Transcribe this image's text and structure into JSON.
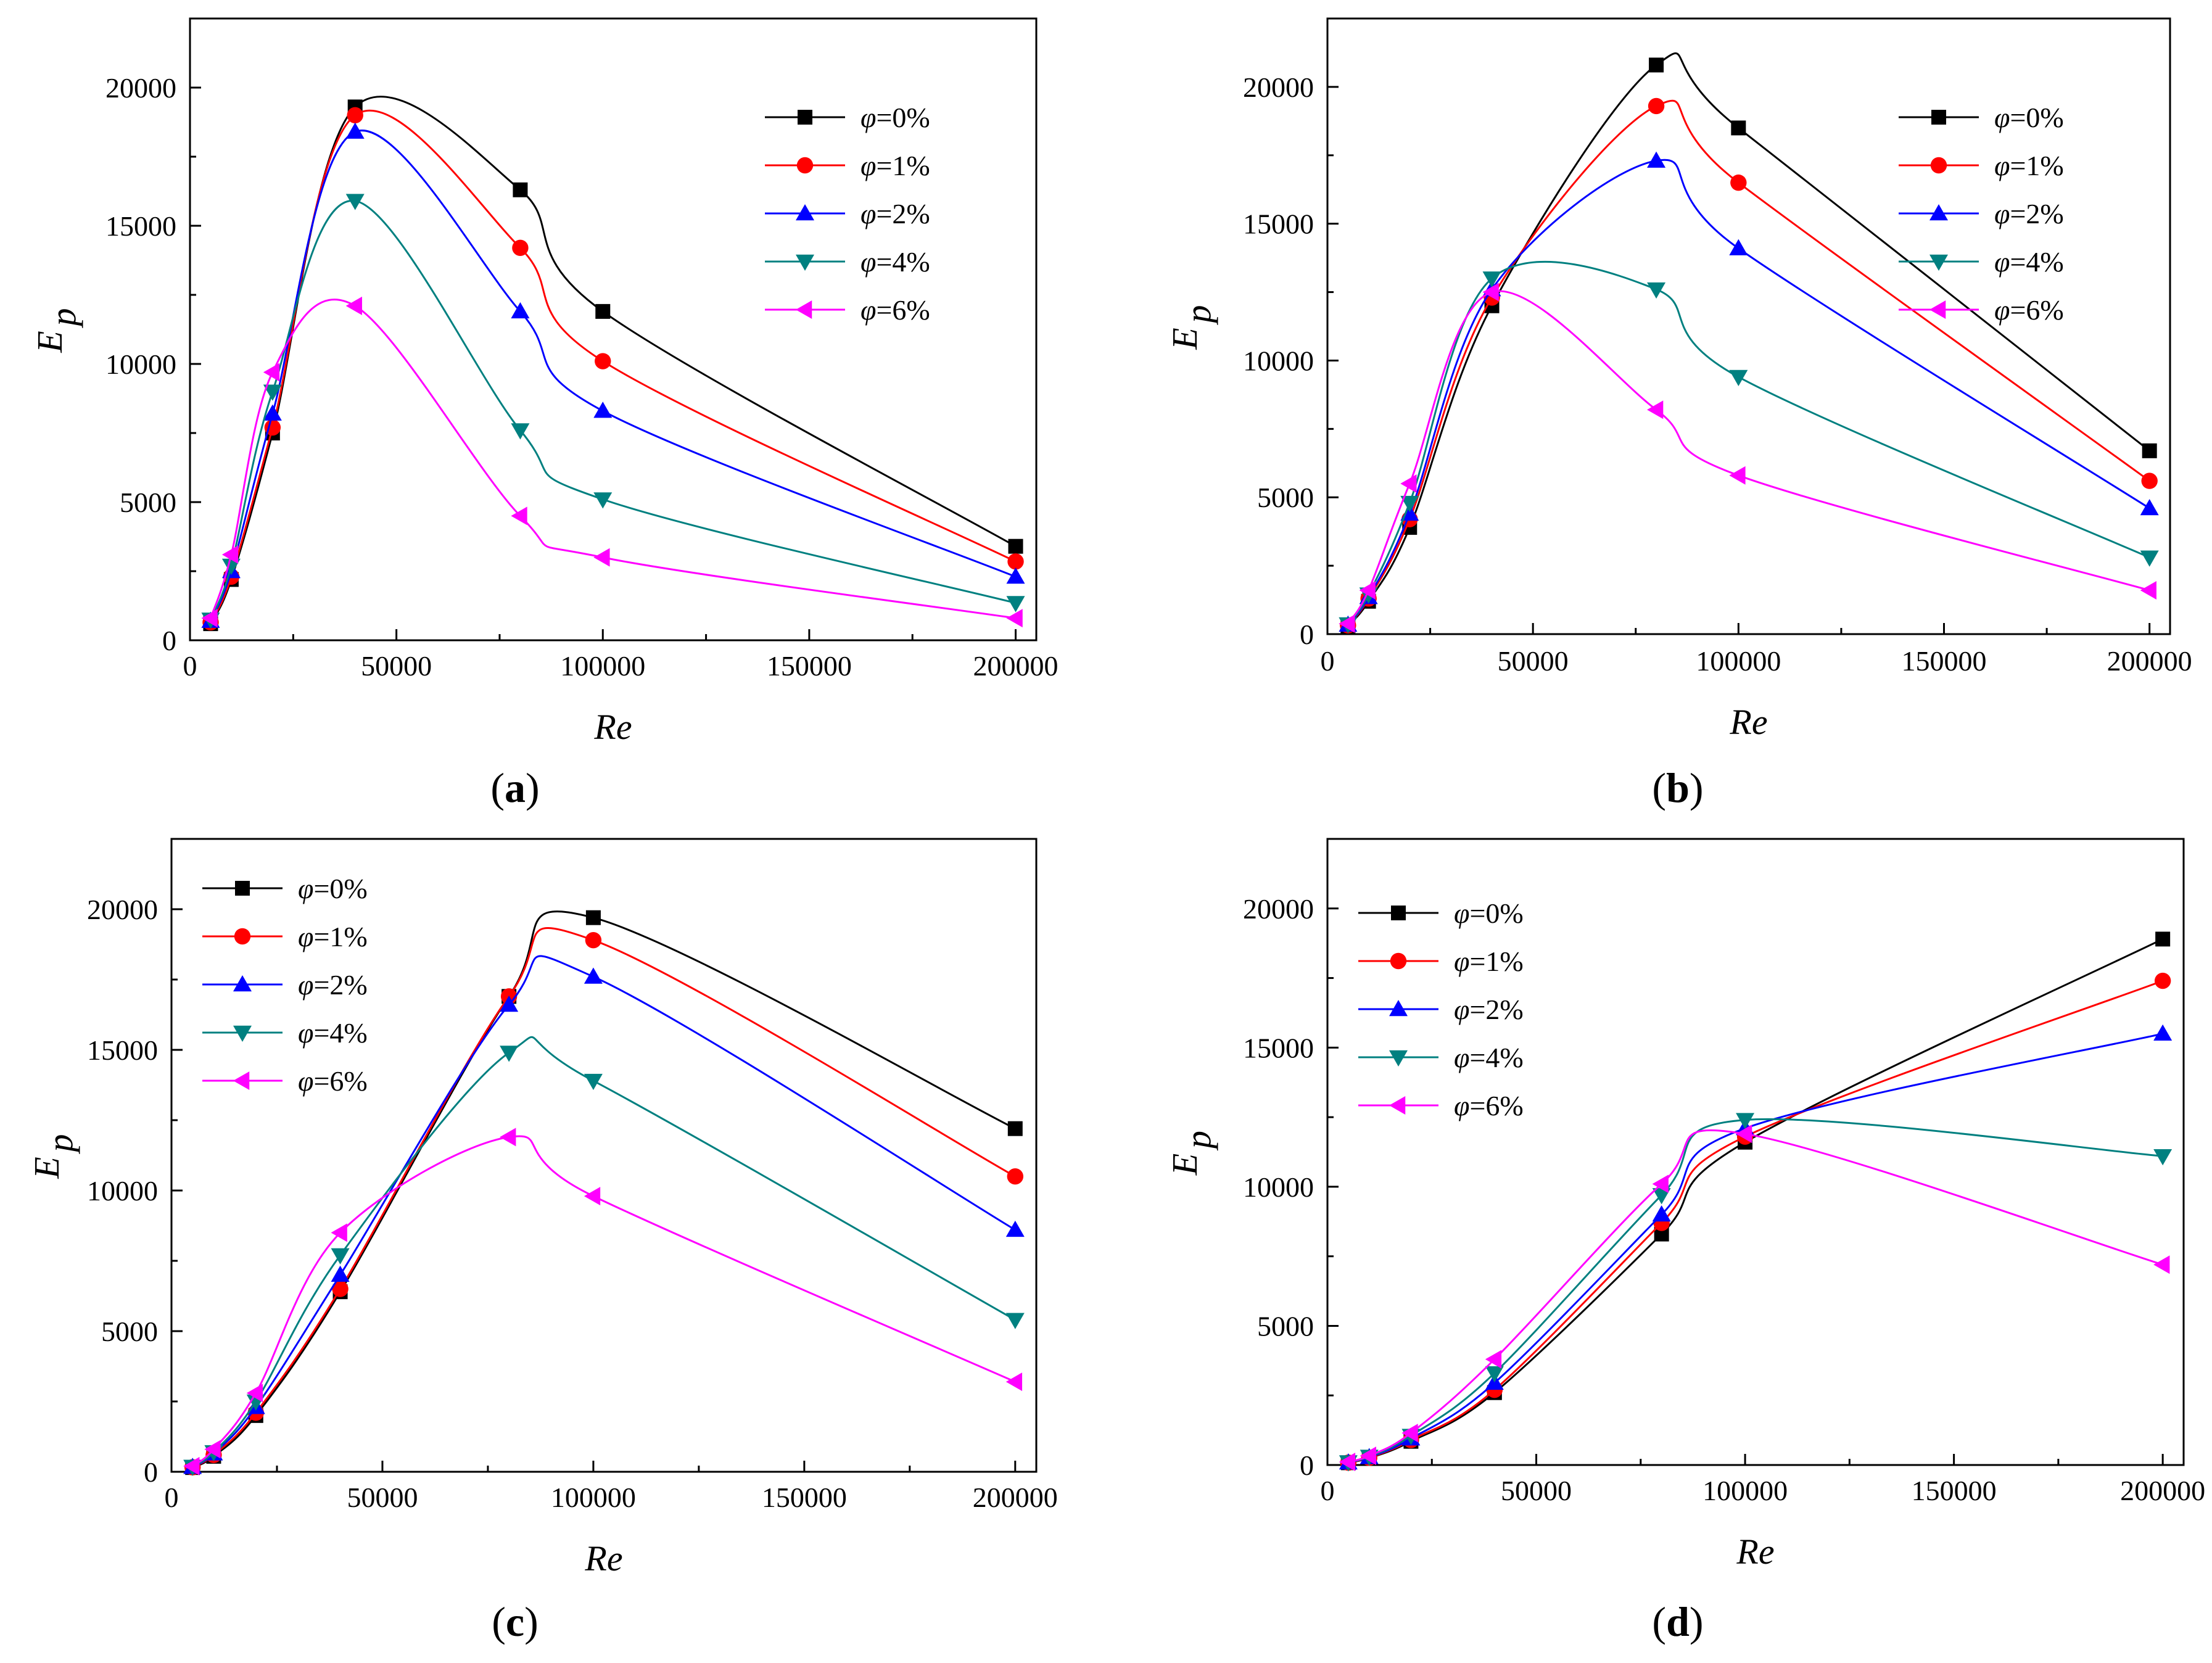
{
  "chart_data": [
    {
      "type": "line",
      "caption": "a",
      "xlabel": "Re",
      "ylabel": "E",
      "ylabel_sub": "p",
      "xlim": [
        0,
        205000
      ],
      "ylim": [
        0,
        22500
      ],
      "x_ticks": [
        0,
        50000,
        100000,
        150000,
        200000
      ],
      "x_tick_labels": [
        "0",
        "50000",
        "100000",
        "150000",
        "200000"
      ],
      "y_ticks": [
        0,
        5000,
        10000,
        15000,
        20000
      ],
      "y_tick_labels": [
        "0",
        "5000",
        "10000",
        "15000",
        "20000"
      ],
      "legend_position": "top-right",
      "x": [
        5000,
        10000,
        20000,
        40000,
        80000,
        100000,
        200000
      ],
      "series": [
        {
          "name": "=0%",
          "symbol": "φ",
          "color": "#000000",
          "marker": "square",
          "values": [
            600,
            2200,
            7500,
            19300,
            16300,
            11900,
            3400
          ]
        },
        {
          "name": "=1%",
          "symbol": "φ",
          "color": "#ff0000",
          "marker": "circle",
          "values": [
            650,
            2300,
            7700,
            19000,
            14200,
            10100,
            2850
          ]
        },
        {
          "name": "=2%",
          "symbol": "φ",
          "color": "#0000ff",
          "marker": "triangle-up",
          "values": [
            700,
            2500,
            8200,
            18400,
            11900,
            8300,
            2300
          ]
        },
        {
          "name": "=4%",
          "symbol": "φ",
          "color": "#008080",
          "marker": "triangle-down",
          "values": [
            750,
            2700,
            9000,
            15900,
            7600,
            5100,
            1350
          ]
        },
        {
          "name": "=6%",
          "symbol": "φ",
          "color": "#ff00ff",
          "marker": "triangle-left",
          "values": [
            800,
            3100,
            9700,
            12100,
            4500,
            3000,
            800
          ]
        }
      ]
    },
    {
      "type": "line",
      "caption": "b",
      "xlabel": "Re",
      "ylabel": "E",
      "ylabel_sub": "p",
      "xlim": [
        0,
        205000
      ],
      "ylim": [
        0,
        22500
      ],
      "x_ticks": [
        0,
        50000,
        100000,
        150000,
        200000
      ],
      "x_tick_labels": [
        "0",
        "50000",
        "100000",
        "150000",
        "200000"
      ],
      "y_ticks": [
        0,
        5000,
        10000,
        15000,
        20000
      ],
      "y_tick_labels": [
        "0",
        "5000",
        "10000",
        "15000",
        "20000"
      ],
      "legend_position": "top-right",
      "x": [
        5000,
        10000,
        20000,
        40000,
        80000,
        100000,
        200000
      ],
      "series": [
        {
          "name": "=0%",
          "symbol": "φ",
          "color": "#000000",
          "marker": "square",
          "values": [
            300,
            1200,
            3900,
            12000,
            20800,
            18500,
            6700
          ]
        },
        {
          "name": "=1%",
          "symbol": "φ",
          "color": "#ff0000",
          "marker": "circle",
          "values": [
            320,
            1300,
            4200,
            12300,
            19300,
            16500,
            5600
          ]
        },
        {
          "name": "=2%",
          "symbol": "φ",
          "color": "#0000ff",
          "marker": "triangle-up",
          "values": [
            340,
            1350,
            4400,
            12600,
            17300,
            14100,
            4600
          ]
        },
        {
          "name": "=4%",
          "symbol": "φ",
          "color": "#008080",
          "marker": "triangle-down",
          "values": [
            360,
            1450,
            4800,
            13000,
            12600,
            9400,
            2800
          ]
        },
        {
          "name": "=6%",
          "symbol": "φ",
          "color": "#ff00ff",
          "marker": "triangle-left",
          "values": [
            380,
            1600,
            5500,
            12500,
            8200,
            5800,
            1600
          ]
        }
      ]
    },
    {
      "type": "line",
      "caption": "c",
      "xlabel": "Re",
      "ylabel": "E",
      "ylabel_sub": "p",
      "xlim": [
        0,
        205000
      ],
      "ylim": [
        0,
        22500
      ],
      "x_ticks": [
        0,
        50000,
        100000,
        150000,
        200000
      ],
      "x_tick_labels": [
        "0",
        "50000",
        "100000",
        "150000",
        "200000"
      ],
      "y_ticks": [
        0,
        5000,
        10000,
        15000,
        20000
      ],
      "y_tick_labels": [
        "0",
        "5000",
        "10000",
        "15000",
        "20000"
      ],
      "legend_position": "top-left",
      "x": [
        5000,
        10000,
        20000,
        40000,
        80000,
        100000,
        200000
      ],
      "series": [
        {
          "name": "=0%",
          "symbol": "φ",
          "color": "#000000",
          "marker": "square",
          "values": [
            150,
            550,
            2000,
            6400,
            16900,
            19700,
            12200
          ]
        },
        {
          "name": "=1%",
          "symbol": "φ",
          "color": "#ff0000",
          "marker": "circle",
          "values": [
            160,
            600,
            2100,
            6500,
            16900,
            18900,
            10500
          ]
        },
        {
          "name": "=2%",
          "symbol": "φ",
          "color": "#0000ff",
          "marker": "triangle-up",
          "values": [
            170,
            650,
            2300,
            7000,
            16600,
            17600,
            8600
          ]
        },
        {
          "name": "=4%",
          "symbol": "φ",
          "color": "#008080",
          "marker": "triangle-down",
          "values": [
            180,
            700,
            2500,
            7700,
            14900,
            13900,
            5400
          ]
        },
        {
          "name": "=6%",
          "symbol": "φ",
          "color": "#ff00ff",
          "marker": "triangle-left",
          "values": [
            200,
            800,
            2800,
            8500,
            11900,
            9800,
            3200
          ]
        }
      ]
    },
    {
      "type": "line",
      "caption": "d",
      "xlabel": "Re",
      "ylabel": "E",
      "ylabel_sub": "p",
      "xlim": [
        0,
        205000
      ],
      "ylim": [
        0,
        22500
      ],
      "x_ticks": [
        0,
        50000,
        100000,
        150000,
        200000
      ],
      "x_tick_labels": [
        "0",
        "50000",
        "100000",
        "150000",
        "200000"
      ],
      "y_ticks": [
        0,
        5000,
        10000,
        15000,
        20000
      ],
      "y_tick_labels": [
        "0",
        "5000",
        "10000",
        "15000",
        "20000"
      ],
      "legend_position": "top-left",
      "x": [
        5000,
        10000,
        20000,
        40000,
        80000,
        100000,
        200000
      ],
      "series": [
        {
          "name": "=0%",
          "symbol": "φ",
          "color": "#000000",
          "marker": "square",
          "values": [
            80,
            250,
            850,
            2600,
            8300,
            11600,
            18900
          ]
        },
        {
          "name": "=1%",
          "symbol": "φ",
          "color": "#ff0000",
          "marker": "circle",
          "values": [
            85,
            260,
            900,
            2700,
            8700,
            11800,
            17400
          ]
        },
        {
          "name": "=2%",
          "symbol": "φ",
          "color": "#0000ff",
          "marker": "triangle-up",
          "values": [
            90,
            280,
            950,
            2950,
            9000,
            12100,
            15500
          ]
        },
        {
          "name": "=4%",
          "symbol": "φ",
          "color": "#008080",
          "marker": "triangle-down",
          "values": [
            100,
            300,
            1050,
            3300,
            9700,
            12400,
            11100
          ]
        },
        {
          "name": "=6%",
          "symbol": "φ",
          "color": "#ff00ff",
          "marker": "triangle-left",
          "values": [
            110,
            330,
            1150,
            3800,
            10100,
            11900,
            7200
          ]
        }
      ]
    }
  ]
}
